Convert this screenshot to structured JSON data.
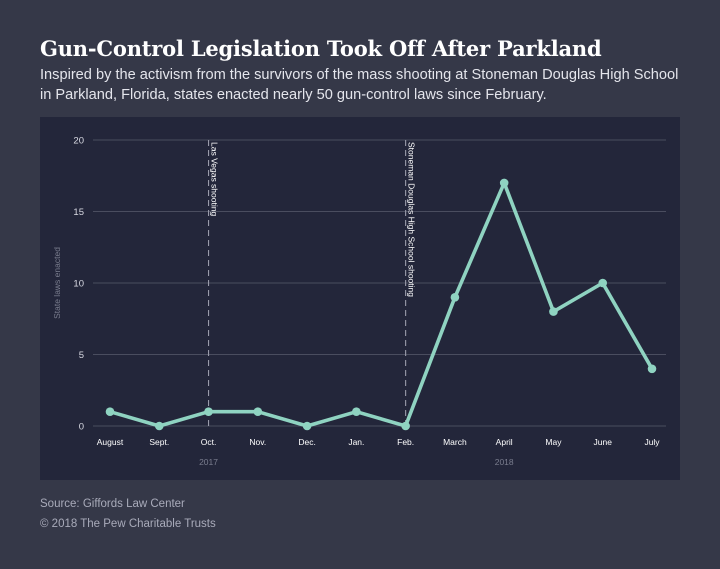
{
  "header": {
    "title": "Gun-Control Legislation Took Off After Parkland",
    "subtitle": "Inspired by the activism from the survivors of the mass shooting at Stoneman Douglas High School in Parkland, Florida, states enacted nearly 50 gun-control laws since February."
  },
  "footer": {
    "source": "Source: Giffords Law Center",
    "copyright": "© 2018 The Pew Charitable Trusts"
  },
  "colors": {
    "background": "#353848",
    "plot_background": "#23263a",
    "line": "#8fd3c1",
    "gridline": "#4a4d5f",
    "annotation_line": "#9a9cab"
  },
  "chart_data": {
    "type": "line",
    "ylabel": "State laws enacted",
    "xlabel": "",
    "ylim": [
      0,
      20
    ],
    "yticks": [
      0,
      5,
      10,
      15,
      20
    ],
    "grid": true,
    "categories": [
      "August",
      "Sept.",
      "Oct.",
      "Nov.",
      "Dec.",
      "Jan.",
      "Feb.",
      "March",
      "April",
      "May",
      "June",
      "July"
    ],
    "series": [
      {
        "values": [
          1,
          0,
          1,
          1,
          0,
          1,
          0,
          9,
          17,
          8,
          10,
          4
        ]
      }
    ],
    "year_labels": [
      {
        "label": "2017",
        "category": "Oct."
      },
      {
        "label": "2018",
        "category": "April"
      }
    ],
    "annotations": [
      {
        "category": "Oct.",
        "label": "Las Vegas shooting"
      },
      {
        "category": "Feb.",
        "label": "Stoneman Douglas High School shooting"
      }
    ]
  }
}
